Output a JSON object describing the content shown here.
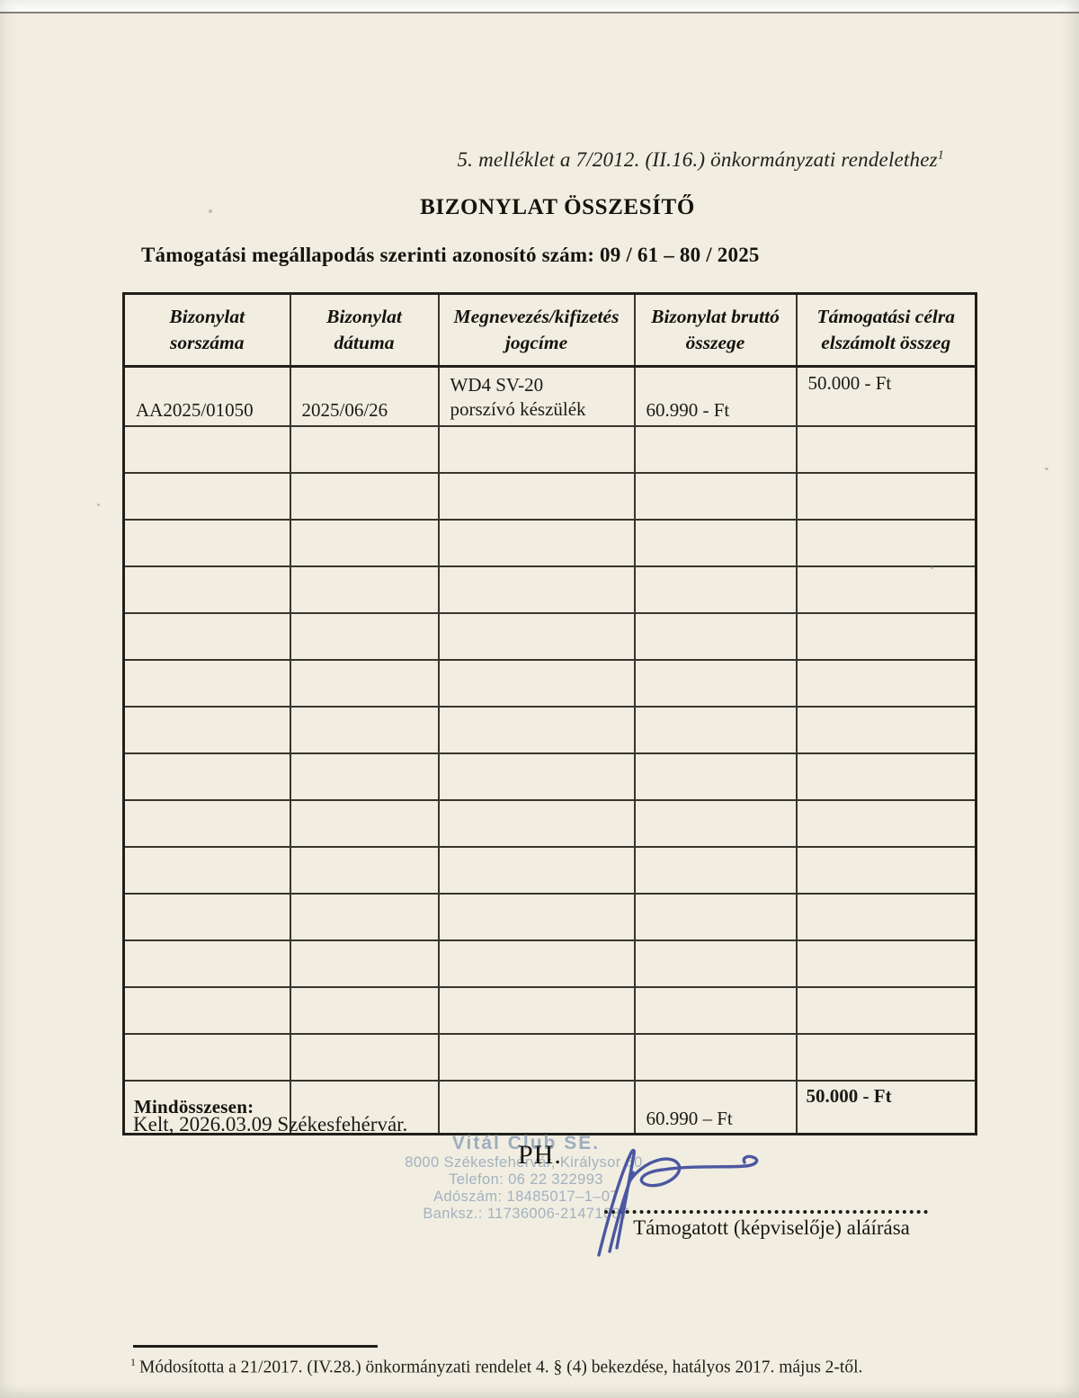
{
  "page": {
    "annex_note": "5. melléklet a 7/2012. (II.16.) önkormányzati rendelethez",
    "annex_note_sup": "1",
    "title": "BIZONYLAT ÖSSZESÍTŐ",
    "agreement_line": "Támogatási megállapodás szerinti azonosító szám: 09 / 61 – 80 / 2025"
  },
  "table": {
    "headers": [
      "Bizonylat sorszáma",
      "Bizonylat dátuma",
      "Megnevezés/kifizetés jogcíme",
      "Bizonylat bruttó összege",
      "Támogatási célra elszámolt összeg"
    ],
    "rows": [
      {
        "sorszam": "AA2025/01050",
        "datum": "2025/06/26",
        "megnevezes_line1": "WD4 SV-20",
        "megnevezes_line2": "porszívó készülék",
        "brutto": "60.990 - Ft",
        "elszamolt": "50.000 - Ft"
      }
    ],
    "empty_row_count": 14,
    "total": {
      "label": "Mindösszesen:",
      "brutto": "60.990 – Ft",
      "elszamolt": "50.000 - Ft"
    }
  },
  "footer": {
    "date_line": "Kelt, 2026.03.09 Székesfehérvár.",
    "ph_label": "PH.",
    "stamp": {
      "line1": "Vitál Club SE.",
      "line2": "8000 Székesfehérvár, Királysor 60.",
      "line3": "Telefon: 06 22 322993",
      "line4": "Adószám: 18485017–1–07",
      "line5": "Banksz.: 11736006-21471887"
    },
    "signature_caption": "Támogatott (képviselője) aláírása",
    "footnote_sup": "1",
    "footnote": "Módosította a 21/2017. (IV.28.) önkormányzati rendelet 4. § (4) bekezdése, hatályos 2017. május 2-től."
  },
  "colors": {
    "paper": "#f1eee1",
    "ink": "#1b1a17",
    "table_border": "#211f1a",
    "stamp_blue": "#9cadbe",
    "signature_blue": "#3e4b9c"
  }
}
